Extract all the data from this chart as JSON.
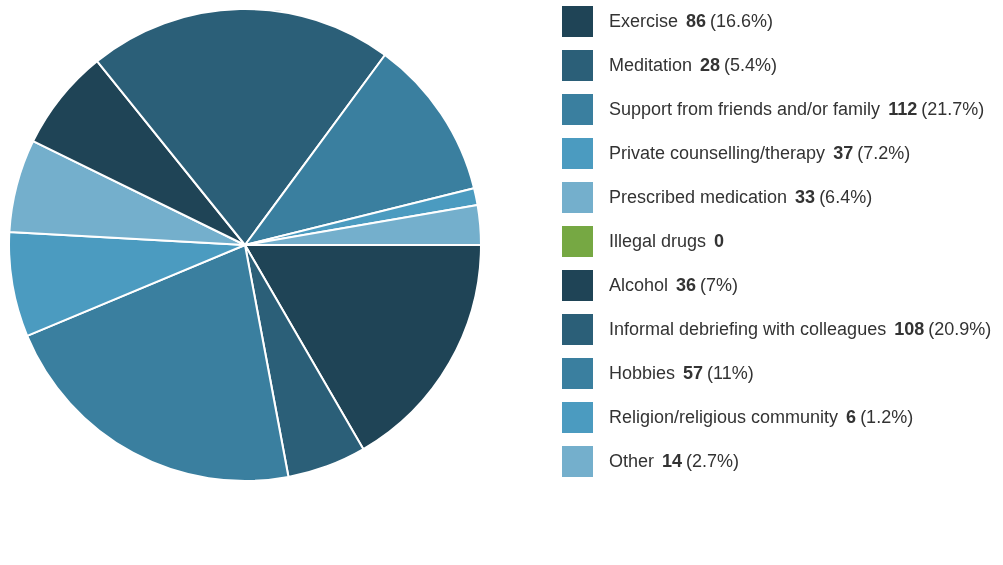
{
  "chart_data": {
    "type": "pie",
    "categories": [
      "Exercise",
      "Meditation",
      "Support from friends and/or family",
      "Private counselling/therapy",
      "Prescribed medication",
      "Illegal drugs",
      "Alcohol",
      "Informal debriefing with colleagues",
      "Hobbies",
      "Religion/religious community",
      "Other"
    ],
    "values": [
      86,
      28,
      112,
      37,
      33,
      0,
      36,
      108,
      57,
      6,
      14
    ],
    "colors": [
      "#1f4456",
      "#2b5f78",
      "#3a7f9f",
      "#4b9bc0",
      "#74afcc",
      "#76a843",
      "#1f4456",
      "#2b5f78",
      "#3a7f9f",
      "#4b9bc0",
      "#74afcc"
    ],
    "value_labels": [
      "86 (16.6%)",
      "28 (5.4%)",
      "112 (21.7%)",
      "37 (7.2%)",
      "33 (6.4%)",
      "0",
      "36 (7%)",
      "108 (20.9%)",
      "57 (11%)",
      "6 (1.2%)",
      "14 (2.7%)"
    ],
    "legend": "right"
  }
}
